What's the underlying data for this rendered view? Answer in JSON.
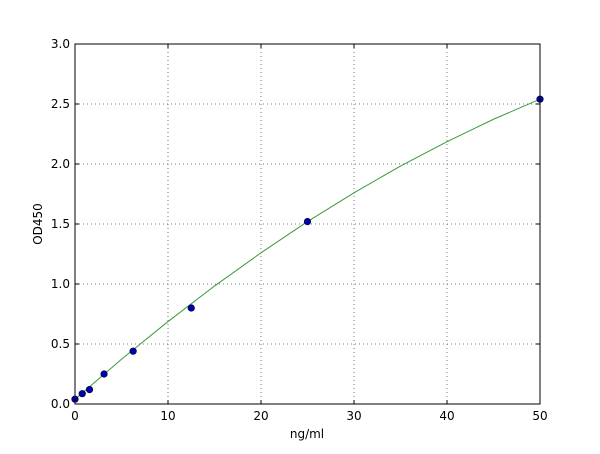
{
  "chart_data": {
    "type": "scatter",
    "title": "",
    "xlabel": "ng/ml",
    "ylabel": "OD450",
    "xlim": [
      0,
      50
    ],
    "ylim": [
      0,
      3.0
    ],
    "xticks": [
      "0",
      "10",
      "20",
      "30",
      "40",
      "50"
    ],
    "yticks": [
      "0.0",
      "0.5",
      "1.0",
      "1.5",
      "2.0",
      "2.5",
      "3.0"
    ],
    "grid": true,
    "points": {
      "x": [
        0,
        0.78,
        1.56,
        3.125,
        6.25,
        12.5,
        25,
        50
      ],
      "y": [
        0.04,
        0.086,
        0.12,
        0.25,
        0.44,
        0.8,
        1.52,
        2.54
      ],
      "color": "#0000b0"
    },
    "fit_curve": {
      "x": [
        0,
        5,
        10,
        15,
        20,
        25,
        30,
        35,
        40,
        45,
        50
      ],
      "y": [
        0.04,
        0.373,
        0.687,
        0.983,
        1.26,
        1.52,
        1.76,
        1.983,
        2.186,
        2.373,
        2.54
      ],
      "color": "#3a9a3a"
    }
  }
}
